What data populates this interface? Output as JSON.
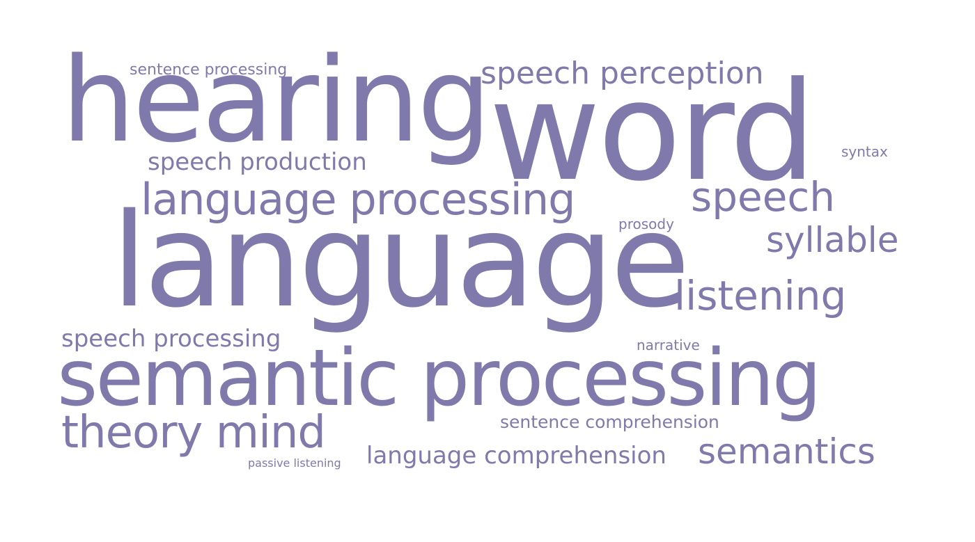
{
  "colors": {
    "word_color": "#8079ab",
    "background": "#ffffff"
  },
  "words": {
    "hearing": "hearing",
    "word": "word",
    "sentence_processing": "sentence processing",
    "speech_perception": "speech perception",
    "syntax": "syntax",
    "speech_production": "speech production",
    "language_processing": "language processing",
    "speech": "speech",
    "prosody": "prosody",
    "syllable": "syllable",
    "language": "language",
    "listening": "listening",
    "speech_processing": "speech processing",
    "narrative": "narrative",
    "semantic_processing": "semantic processing",
    "sentence_comprehension": "sentence comprehension",
    "theory_mind": "theory mind",
    "language_comprehension": "language comprehension",
    "semantics": "semantics",
    "passive_listening": "passive listening"
  }
}
